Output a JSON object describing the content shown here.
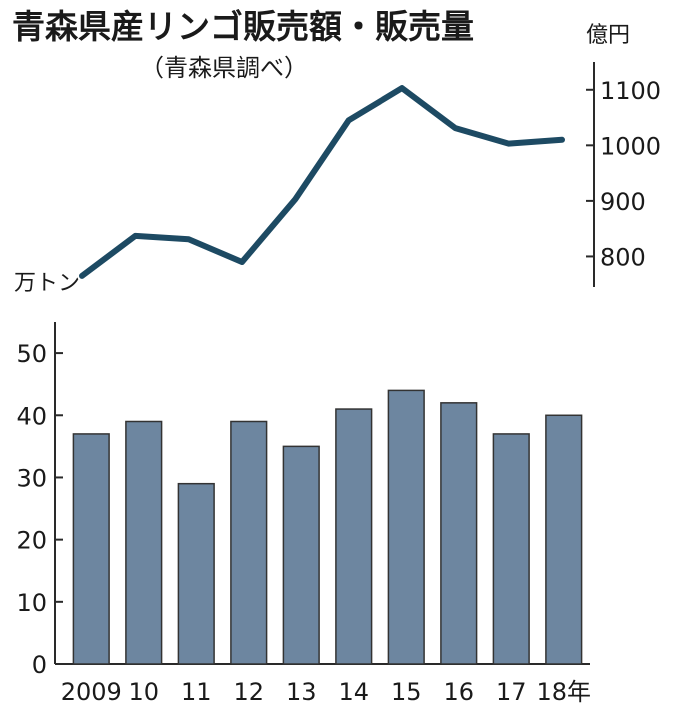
{
  "chart": {
    "title": "青森県産リンゴ販売額・販売量",
    "subtitle": "（青森県調べ）"
  },
  "chart_data": [
    {
      "type": "line",
      "name": "販売額",
      "unit": "億円",
      "x": [
        "2009",
        "10",
        "11",
        "12",
        "13",
        "14",
        "15",
        "16",
        "17",
        "18年"
      ],
      "values": [
        765,
        837,
        831,
        790,
        903,
        1045,
        1103,
        1031,
        1003,
        1010
      ],
      "yticks": [
        800,
        900,
        1000,
        1100
      ],
      "ylim": [
        745,
        1150
      ],
      "axis_side": "right",
      "color": "#1d4a63"
    },
    {
      "type": "bar",
      "name": "販売量",
      "unit": "万トン",
      "categories": [
        "2009",
        "10",
        "11",
        "12",
        "13",
        "14",
        "15",
        "16",
        "17",
        "18年"
      ],
      "values": [
        37,
        39,
        29,
        39,
        35,
        41,
        44,
        42,
        37,
        40
      ],
      "yticks": [
        0,
        10,
        20,
        30,
        40,
        50
      ],
      "ylim": [
        0,
        55
      ],
      "axis_side": "left",
      "color": "#6d86a0"
    }
  ]
}
